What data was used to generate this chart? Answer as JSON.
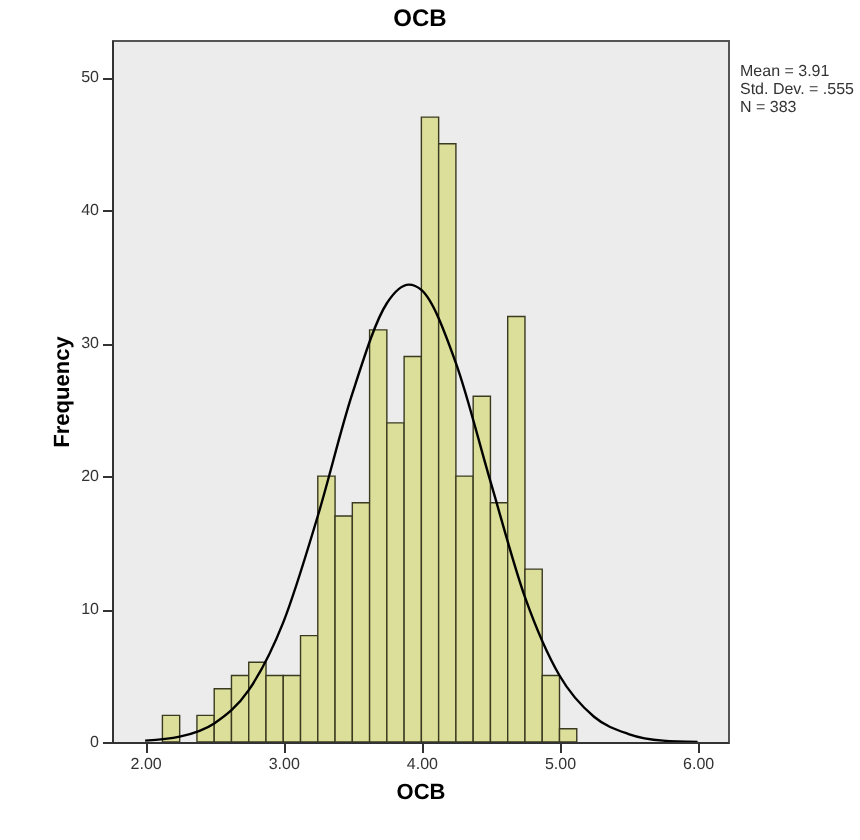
{
  "chart_data": {
    "type": "histogram",
    "title": "OCB",
    "xlabel": "OCB",
    "ylabel": "Frequency",
    "series": [
      {
        "color": "#dcdf9a",
        "bins": [
          2.125,
          2.25,
          2.375,
          2.5,
          2.625,
          2.75,
          2.875,
          3.0,
          3.125,
          3.25,
          3.375,
          3.5,
          3.625,
          3.75,
          3.875,
          4.0,
          4.125,
          4.25,
          4.375,
          4.5,
          4.625,
          4.75,
          4.875,
          5.0,
          5.125
        ],
        "values": [
          2,
          0,
          2,
          4,
          5,
          6,
          5,
          5,
          8,
          20,
          17,
          18,
          31,
          24,
          29,
          47,
          45,
          20,
          26,
          18,
          32,
          13,
          5,
          1
        ]
      },
      {
        "type": "line",
        "color": "#000000",
        "x": [
          2.0,
          2.25,
          2.5,
          2.75,
          3.0,
          3.25,
          3.5,
          3.75,
          3.91,
          4.0,
          4.25,
          4.5,
          4.75,
          5.0,
          5.25,
          5.5,
          5.75,
          6.0
        ],
        "values": [
          0.1,
          0.4,
          1.4,
          3.9,
          9.0,
          17.0,
          26.2,
          33.0,
          34.4,
          34.0,
          28.5,
          19.6,
          10.9,
          5.0,
          1.9,
          0.6,
          0.1,
          0.0
        ]
      }
    ],
    "xlim": [
      1.76,
      6.22
    ],
    "ylim": [
      0,
      52.8
    ],
    "xticks": [
      {
        "value": 2,
        "label": "2.00"
      },
      {
        "value": 3,
        "label": "3.00"
      },
      {
        "value": 4,
        "label": "4.00"
      },
      {
        "value": 5,
        "label": "5.00"
      },
      {
        "value": 6,
        "label": "6.00"
      }
    ],
    "yticks": [
      0,
      10,
      20,
      30,
      40,
      50
    ],
    "annotations": [
      "Mean = 3.91",
      "Std. Dev. = .555",
      "N = 383"
    ]
  }
}
